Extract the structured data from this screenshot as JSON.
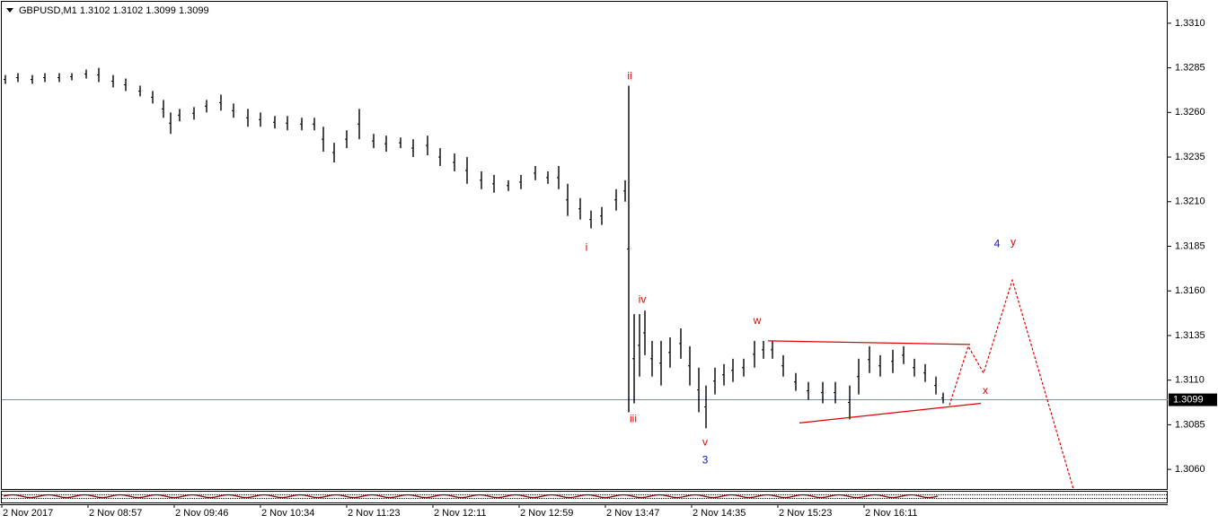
{
  "chart_data": {
    "type": "hlbar",
    "title": "GBPUSD,M1  1.3102 1.3102 1.3099 1.3099",
    "x": [
      2,
      9,
      17,
      24,
      32,
      39,
      47,
      54,
      62,
      69,
      77,
      84,
      90,
      94,
      99,
      107,
      114,
      122,
      129,
      137,
      144,
      152,
      159,
      167,
      174,
      179,
      185,
      192,
      199,
      207,
      214,
      222,
      229,
      237,
      244,
      252,
      259,
      267,
      274,
      282,
      289,
      297,
      304,
      310,
      315,
      322,
      328,
      334,
      342,
      347,
      349,
      352,
      355,
      358,
      362,
      367,
      372,
      378,
      383,
      388,
      392,
      397,
      402,
      407,
      413,
      419,
      424,
      429,
      435,
      442,
      449,
      457,
      464,
      472,
      477,
      483,
      489,
      496,
      502,
      508,
      514,
      520,
      524
    ],
    "high": [
      1.3281,
      1.3282,
      1.3281,
      1.3282,
      1.3282,
      1.3282,
      1.3284,
      1.3285,
      1.3281,
      1.3279,
      1.3275,
      1.3272,
      1.3267,
      1.326,
      1.3262,
      1.3263,
      1.3267,
      1.327,
      1.3265,
      1.3262,
      1.326,
      1.3258,
      1.3258,
      1.3257,
      1.3257,
      1.3252,
      1.3243,
      1.325,
      1.3262,
      1.3248,
      1.3247,
      1.3246,
      1.3245,
      1.3247,
      1.324,
      1.3237,
      1.3235,
      1.3227,
      1.3225,
      1.3222,
      1.3225,
      1.323,
      1.3227,
      1.323,
      1.322,
      1.3212,
      1.3205,
      1.3207,
      1.3217,
      1.3222,
      1.3275,
      1.3147,
      1.3147,
      1.3149,
      1.3132,
      1.3132,
      1.3134,
      1.3139,
      1.3129,
      1.3117,
      1.3107,
      1.3117,
      1.3119,
      1.3122,
      1.3122,
      1.3132,
      1.3132,
      1.3132,
      1.3124,
      1.3114,
      1.3109,
      1.3109,
      1.3109,
      1.3107,
      1.3122,
      1.3129,
      1.3124,
      1.3127,
      1.3129,
      1.3122,
      1.3119,
      1.3112,
      1.3103
    ],
    "low": [
      1.3276,
      1.3277,
      1.3276,
      1.3277,
      1.3277,
      1.3278,
      1.3279,
      1.3277,
      1.3274,
      1.3272,
      1.3269,
      1.3265,
      1.3257,
      1.3248,
      1.3255,
      1.3256,
      1.326,
      1.3261,
      1.3257,
      1.3252,
      1.3252,
      1.3251,
      1.325,
      1.325,
      1.325,
      1.3238,
      1.3232,
      1.324,
      1.3245,
      1.324,
      1.3238,
      1.324,
      1.3235,
      1.3236,
      1.323,
      1.3227,
      1.322,
      1.3217,
      1.3215,
      1.3216,
      1.3217,
      1.3222,
      1.322,
      1.3217,
      1.3202,
      1.32,
      1.3195,
      1.3197,
      1.3205,
      1.321,
      1.3092,
      1.3097,
      1.3112,
      1.3124,
      1.3112,
      1.3107,
      1.3117,
      1.3122,
      1.3107,
      1.3092,
      1.3083,
      1.3102,
      1.3107,
      1.3109,
      1.3112,
      1.3117,
      1.3122,
      1.3122,
      1.3112,
      1.3104,
      1.3099,
      1.3097,
      1.3097,
      1.3088,
      1.3102,
      1.3114,
      1.3112,
      1.3114,
      1.3119,
      1.3112,
      1.3109,
      1.3102,
      1.3097
    ],
    "color": "#000000",
    "xlim": [
      0,
      649
    ],
    "xticks": [
      {
        "value": 0,
        "label": "2 Nov 2017"
      },
      {
        "value": 48,
        "label": "2 Nov 08:57"
      },
      {
        "value": 96,
        "label": "2 Nov 09:46"
      },
      {
        "value": 144,
        "label": "2 Nov 10:34"
      },
      {
        "value": 192,
        "label": "2 Nov 11:23"
      },
      {
        "value": 240,
        "label": "2 Nov 12:11"
      },
      {
        "value": 288,
        "label": "2 Nov 12:59"
      },
      {
        "value": 336,
        "label": "2 Nov 13:47"
      },
      {
        "value": 384,
        "label": "2 Nov 14:35"
      },
      {
        "value": 432,
        "label": "2 Nov 15:23"
      },
      {
        "value": 480,
        "label": "2 Nov 16:11"
      }
    ],
    "ylim": [
      1.3049,
      1.3323
    ],
    "yticks": [
      {
        "value": 1.331,
        "label": "1.3310"
      },
      1.3285,
      {
        "value": 1.326,
        "label": "1.3260"
      },
      1.3235,
      {
        "value": 1.321,
        "label": "1.3210"
      },
      1.3185,
      {
        "value": 1.316,
        "label": "1.3160"
      },
      1.3135,
      {
        "value": 1.311,
        "label": "1.3110"
      },
      1.3085,
      {
        "value": 1.306,
        "label": "1.3060"
      }
    ],
    "current_price": 1.3099,
    "current_price_color": "#7890b0",
    "annotations": [
      {
        "text": "ii",
        "x": 349.5,
        "y": 1.328,
        "color": "#e00000"
      },
      {
        "text": "i",
        "x": 325.5,
        "y": 1.3184,
        "color": "#e00000"
      },
      {
        "text": "iii",
        "x": 351.5,
        "y": 1.3088,
        "color": "#e00000"
      },
      {
        "text": "iv",
        "x": 356.5,
        "y": 1.3155,
        "color": "#e00000"
      },
      {
        "text": "v",
        "x": 391.5,
        "y": 1.3075,
        "color": "#e00000"
      },
      {
        "text": "3",
        "x": 391.5,
        "y": 1.3065,
        "color": "#1010c0"
      },
      {
        "text": "w",
        "x": 420.5,
        "y": 1.3143,
        "color": "#e00000"
      },
      {
        "text": "x",
        "x": 547.5,
        "y": 1.3104,
        "color": "#e00000"
      },
      {
        "text": "4",
        "x": 554,
        "y": 1.3186,
        "color": "#1010c0"
      },
      {
        "text": "y",
        "x": 563,
        "y": 1.3187,
        "color": "#e00000"
      }
    ],
    "drawings": [
      {
        "style": "solid",
        "color": "#e00000",
        "x": [
          426.5,
          539
        ],
        "y": [
          1.3132,
          1.313
        ]
      },
      {
        "style": "solid",
        "color": "#e00000",
        "x": [
          444,
          545
        ],
        "y": [
          1.3086,
          1.3097
        ]
      },
      {
        "style": "dashed",
        "color": "#e00000",
        "x": [
          527.5,
          538,
          546.5,
          562.5,
          596.5
        ],
        "y": [
          1.3096,
          1.3129,
          1.3114,
          1.3166,
          1.3049
        ]
      }
    ]
  }
}
